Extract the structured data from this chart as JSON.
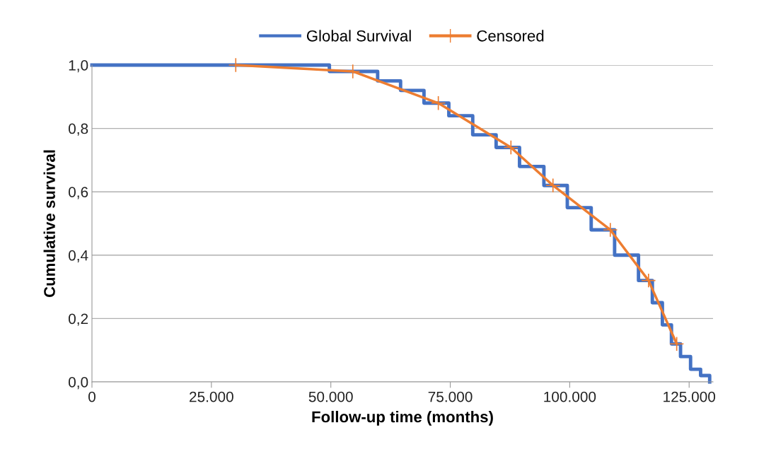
{
  "chart_data": {
    "type": "line",
    "xlabel": "Follow-up time (months)",
    "ylabel": "Cumulative survival",
    "xlim": [
      0,
      130000
    ],
    "ylim": [
      0,
      1
    ],
    "xticks": [
      0,
      {
        "value": 25000,
        "label": "25.000"
      },
      {
        "value": 50000,
        "label": "50.000"
      },
      {
        "value": 75000,
        "label": "75.000"
      },
      {
        "value": 100000,
        "label": "100.000"
      },
      {
        "value": 125000,
        "label": "125.000"
      }
    ],
    "yticks": [
      {
        "value": 0,
        "label": "0,0"
      },
      {
        "value": 0.2,
        "label": "0,2"
      },
      {
        "value": 0.4,
        "label": "0,4"
      },
      {
        "value": 0.6,
        "label": "0,6"
      },
      {
        "value": 0.8,
        "label": "0,8"
      },
      {
        "value": 1,
        "label": "1,0"
      }
    ],
    "grid": "y",
    "legend": "top",
    "series": [
      {
        "name": "Global Survival",
        "type": "step",
        "color": "#4472c4",
        "marker": "none",
        "x": [
          0,
          49700,
          59800,
          64600,
          69500,
          74700,
          79700,
          84600,
          89500,
          94600,
          99500,
          104500,
          109400,
          114400,
          117300,
          119400,
          121300,
          123200,
          125300,
          127400,
          129300
        ],
        "values": [
          1.0,
          0.98,
          0.95,
          0.92,
          0.88,
          0.84,
          0.78,
          0.74,
          0.68,
          0.62,
          0.55,
          0.48,
          0.4,
          0.32,
          0.25,
          0.18,
          0.12,
          0.08,
          0.04,
          0.02,
          0.0
        ]
      },
      {
        "name": "Censored",
        "color": "#ed7d31",
        "marker": "cross",
        "x": [
          30100,
          54600,
          72500,
          87700,
          96500,
          108500,
          116500,
          122400
        ],
        "values": [
          1.0,
          0.98,
          0.88,
          0.74,
          0.62,
          0.48,
          0.32,
          0.12
        ]
      }
    ]
  }
}
